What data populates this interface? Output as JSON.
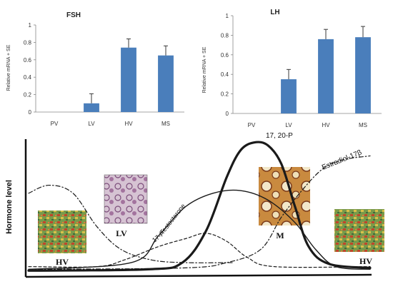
{
  "chart_data": [
    {
      "type": "bar",
      "title": "FSH",
      "ylabel": "Relative mRNA + SE",
      "categories": [
        "PV",
        "LV",
        "HV",
        "MS"
      ],
      "values": [
        0,
        0.1,
        0.74,
        0.65
      ],
      "errors": [
        0,
        0.11,
        0.1,
        0.11
      ],
      "ylim": [
        0,
        1
      ],
      "yticks": [
        "0",
        "0.2",
        "0.4",
        "0.6",
        "0.8",
        "1"
      ],
      "grid": false,
      "bar_color": "#4a7ebb"
    },
    {
      "type": "bar",
      "title": "LH",
      "ylabel": "Relative mRNA + SE",
      "categories": [
        "PV",
        "LV",
        "HV",
        "MS"
      ],
      "values": [
        0,
        0.35,
        0.76,
        0.78
      ],
      "errors": [
        0,
        0.1,
        0.1,
        0.11
      ],
      "ylim": [
        0,
        1
      ],
      "yticks": [
        "0",
        "0.2",
        "0.4",
        "0.6",
        "0.8",
        "1"
      ],
      "grid": false,
      "bar_color": "#4a7ebb"
    },
    {
      "type": "line",
      "ylabel": "Hormone level",
      "series": [
        {
          "name": "17, 20-P",
          "style": "thick-solid",
          "points": [
            [
              0,
              0.02
            ],
            [
              0.35,
              0.03
            ],
            [
              0.45,
              0.08
            ],
            [
              0.52,
              0.32
            ],
            [
              0.58,
              0.72
            ],
            [
              0.62,
              0.92
            ],
            [
              0.66,
              0.98
            ],
            [
              0.7,
              0.96
            ],
            [
              0.74,
              0.82
            ],
            [
              0.78,
              0.5
            ],
            [
              0.82,
              0.2
            ],
            [
              0.88,
              0.07
            ],
            [
              1,
              0.04
            ]
          ]
        },
        {
          "name": "Testosterone",
          "style": "solid",
          "points": [
            [
              0,
              0.03
            ],
            [
              0.3,
              0.08
            ],
            [
              0.38,
              0.28
            ],
            [
              0.46,
              0.5
            ],
            [
              0.54,
              0.6
            ],
            [
              0.62,
              0.62
            ],
            [
              0.7,
              0.55
            ],
            [
              0.78,
              0.38
            ],
            [
              0.84,
              0.18
            ],
            [
              0.9,
              0.05
            ],
            [
              1,
              0.03
            ]
          ]
        },
        {
          "name": "17-P",
          "style": "dashed",
          "points": [
            [
              0,
              0.05
            ],
            [
              0.2,
              0.05
            ],
            [
              0.28,
              0.1
            ],
            [
              0.38,
              0.2
            ],
            [
              0.46,
              0.26
            ],
            [
              0.52,
              0.3
            ],
            [
              0.58,
              0.24
            ],
            [
              0.64,
              0.12
            ],
            [
              0.72,
              0.05
            ],
            [
              1,
              0.05
            ]
          ]
        },
        {
          "name": "Estradiol-17β",
          "style": "dash-dot",
          "points": [
            [
              0,
              0.03
            ],
            [
              0.45,
              0.04
            ],
            [
              0.58,
              0.08
            ],
            [
              0.68,
              0.18
            ],
            [
              0.74,
              0.42
            ],
            [
              0.8,
              0.62
            ],
            [
              0.86,
              0.78
            ],
            [
              0.92,
              0.85
            ],
            [
              1,
              0.88
            ]
          ]
        },
        {
          "name": "",
          "style": "dash-dot",
          "points": [
            [
              0,
              0.6
            ],
            [
              0.06,
              0.66
            ],
            [
              0.13,
              0.6
            ],
            [
              0.2,
              0.35
            ],
            [
              0.27,
              0.18
            ],
            [
              0.36,
              0.1
            ],
            [
              0.46,
              0.08
            ],
            [
              0.6,
              0.08
            ]
          ]
        }
      ],
      "stage_labels": [
        "HV",
        "LV",
        "M",
        "HV"
      ]
    }
  ]
}
